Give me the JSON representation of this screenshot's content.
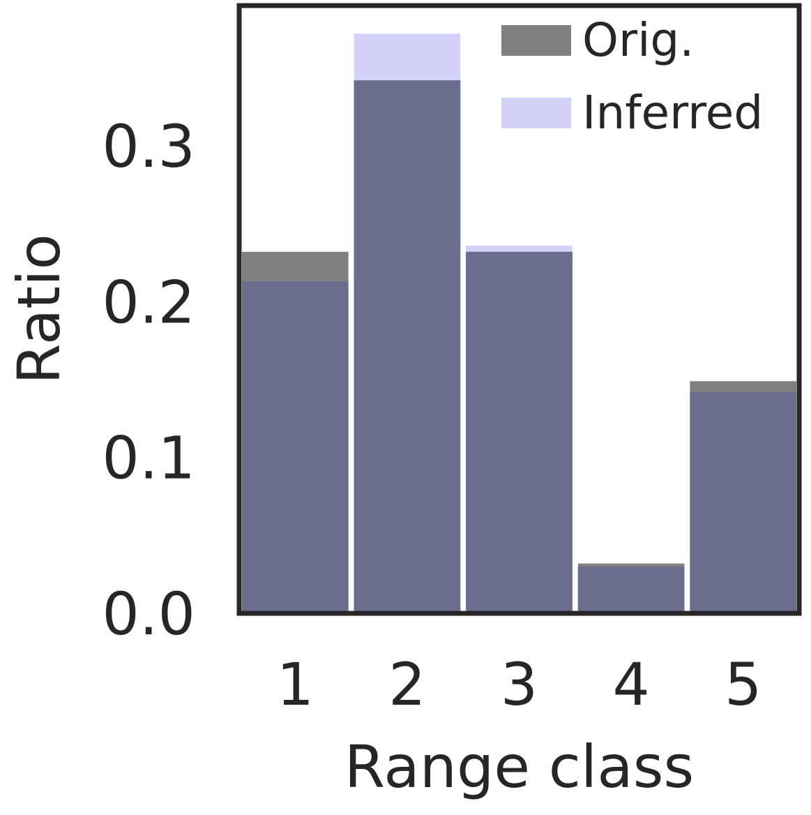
{
  "chart_data": {
    "type": "bar",
    "title": "",
    "xlabel": "Range class",
    "ylabel": "Ratio",
    "categories": [
      "1",
      "2",
      "3",
      "4",
      "5"
    ],
    "series": [
      {
        "name": "Orig.",
        "values": [
          0.232,
          0.342,
          0.232,
          0.032,
          0.149
        ],
        "color": "#808080",
        "opacity": 1.0
      },
      {
        "name": "Inferred",
        "values": [
          0.213,
          0.372,
          0.236,
          0.03,
          0.142
        ],
        "color": "#8c8cf0",
        "opacity": 0.4
      }
    ],
    "overlap_color": "#6b6d8f",
    "ylim": [
      0,
      0.39
    ],
    "yticks": [
      0.0,
      0.1,
      0.2,
      0.3
    ],
    "ytick_labels": [
      "0.0",
      "0.1",
      "0.2",
      "0.3"
    ],
    "grid": false,
    "legend_position": "top-right",
    "frame_color": "#262626"
  }
}
